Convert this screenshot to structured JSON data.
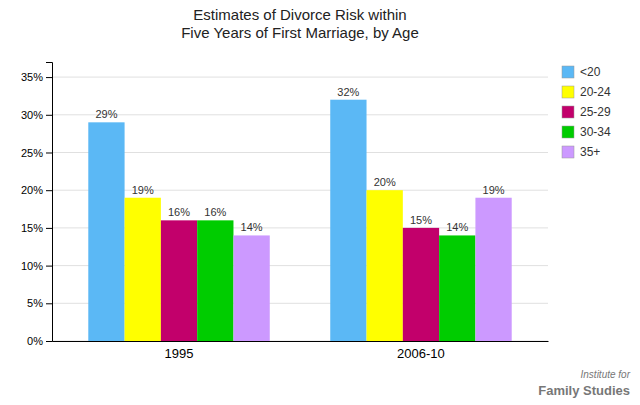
{
  "chart_data": {
    "type": "bar",
    "title": "Estimates of Divorce Risk within\nFive Years of First Marriage, by Age",
    "categories": [
      "1995",
      "2006-10"
    ],
    "series": [
      {
        "name": "<20",
        "color": "#5BB8F5",
        "values": [
          29,
          32
        ],
        "value_labels": [
          "29%",
          "32%"
        ]
      },
      {
        "name": "20-24",
        "color": "#FFFF00",
        "values": [
          19,
          20
        ],
        "value_labels": [
          "19%",
          "20%"
        ]
      },
      {
        "name": "25-29",
        "color": "#C2006B",
        "values": [
          16,
          15
        ],
        "value_labels": [
          "16%",
          "15%"
        ]
      },
      {
        "name": "30-34",
        "color": "#00CC00",
        "values": [
          16,
          14
        ],
        "value_labels": [
          "16%",
          "14%"
        ]
      },
      {
        "name": "35+",
        "color": "#CC99FF",
        "values": [
          14,
          19
        ],
        "value_labels": [
          "14%",
          "19%"
        ]
      }
    ],
    "ylim": [
      0,
      37
    ],
    "yticks": [
      {
        "value": 0,
        "label": "0%"
      },
      {
        "value": 5,
        "label": "5%"
      },
      {
        "value": 10,
        "label": "10%"
      },
      {
        "value": 15,
        "label": "15%"
      },
      {
        "value": 20,
        "label": "20%"
      },
      {
        "value": 25,
        "label": "25%"
      },
      {
        "value": 30,
        "label": "30%"
      },
      {
        "value": 35,
        "label": "35%"
      }
    ],
    "grid": true,
    "legend": "upper right",
    "data_labels": true,
    "annotations": [
      "Institute for",
      "Family Studies"
    ]
  }
}
